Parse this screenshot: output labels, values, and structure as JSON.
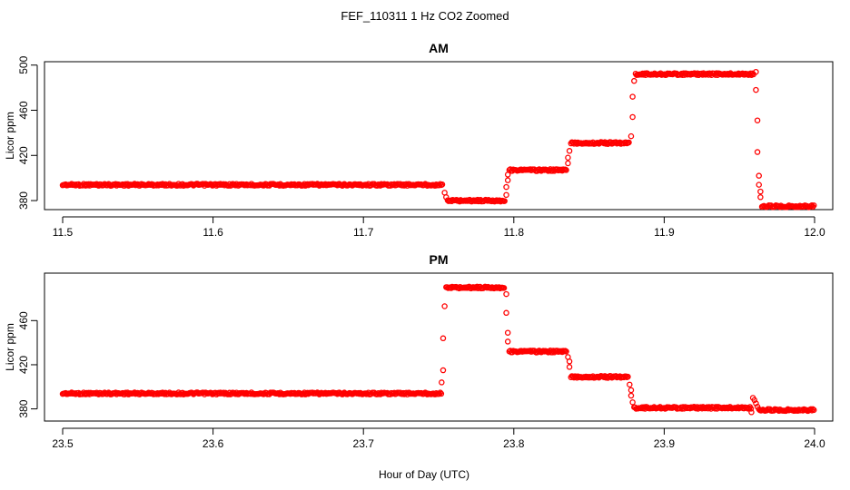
{
  "title": "FEF_110311  1 Hz CO2 Zoomed",
  "xlabel": "Hour of Day (UTC)",
  "chart_data": [
    {
      "type": "scatter",
      "title": "AM",
      "xlabel": "",
      "ylabel": "Licor ppm",
      "xlim": [
        11.5,
        12.0
      ],
      "ylim": [
        372,
        503
      ],
      "xticks": [
        "11.5",
        "11.6",
        "11.7",
        "11.8",
        "11.9",
        "12.0"
      ],
      "yticks": [
        "380",
        "420",
        "460",
        "500"
      ],
      "marker_color": "#ff0000",
      "marker": "open-circle",
      "segments": [
        {
          "x": [
            11.5,
            11.753
          ],
          "y": 394
        },
        {
          "x": [
            11.756,
            11.794
          ],
          "y": 380
        },
        {
          "x": [
            11.797,
            11.835
          ],
          "y": 407
        },
        {
          "x": [
            11.838,
            11.877
          ],
          "y": 431
        },
        {
          "x": [
            11.881,
            11.96
          ],
          "y": 492
        },
        {
          "x": [
            11.965,
            12.0
          ],
          "y": 375
        }
      ],
      "transition_points": [
        {
          "x": 11.754,
          "y": 387
        },
        {
          "x": 11.755,
          "y": 383
        },
        {
          "x": 11.795,
          "y": 385
        },
        {
          "x": 11.795,
          "y": 392
        },
        {
          "x": 11.796,
          "y": 398
        },
        {
          "x": 11.796,
          "y": 403
        },
        {
          "x": 11.836,
          "y": 413
        },
        {
          "x": 11.836,
          "y": 418
        },
        {
          "x": 11.837,
          "y": 424
        },
        {
          "x": 11.878,
          "y": 437
        },
        {
          "x": 11.879,
          "y": 454
        },
        {
          "x": 11.879,
          "y": 472
        },
        {
          "x": 11.88,
          "y": 486
        },
        {
          "x": 11.961,
          "y": 494
        },
        {
          "x": 11.961,
          "y": 478
        },
        {
          "x": 11.962,
          "y": 451
        },
        {
          "x": 11.962,
          "y": 423
        },
        {
          "x": 11.963,
          "y": 402
        },
        {
          "x": 11.963,
          "y": 394
        },
        {
          "x": 11.964,
          "y": 388
        },
        {
          "x": 11.964,
          "y": 383
        }
      ]
    },
    {
      "type": "scatter",
      "title": "PM",
      "xlabel": "Hour of Day (UTC)",
      "ylabel": "Licor ppm",
      "xlim": [
        23.5,
        24.0
      ],
      "ylim": [
        369,
        503
      ],
      "xticks": [
        "23.5",
        "23.6",
        "23.7",
        "23.8",
        "23.9",
        "24.0"
      ],
      "yticks": [
        "380",
        "420",
        "460"
      ],
      "marker_color": "#ff0000",
      "marker": "open-circle",
      "segments": [
        {
          "x": [
            23.5,
            23.752
          ],
          "y": 394
        },
        {
          "x": [
            23.755,
            23.794
          ],
          "y": 490
        },
        {
          "x": [
            23.797,
            23.835
          ],
          "y": 432
        },
        {
          "x": [
            23.838,
            23.876
          ],
          "y": 409
        },
        {
          "x": [
            23.88,
            23.958
          ],
          "y": 381
        },
        {
          "x": [
            23.963,
            24.0
          ],
          "y": 379
        }
      ],
      "transition_points": [
        {
          "x": 23.752,
          "y": 404
        },
        {
          "x": 23.753,
          "y": 415
        },
        {
          "x": 23.753,
          "y": 444
        },
        {
          "x": 23.754,
          "y": 473
        },
        {
          "x": 23.795,
          "y": 484
        },
        {
          "x": 23.795,
          "y": 467
        },
        {
          "x": 23.796,
          "y": 449
        },
        {
          "x": 23.796,
          "y": 441
        },
        {
          "x": 23.836,
          "y": 427
        },
        {
          "x": 23.837,
          "y": 423
        },
        {
          "x": 23.837,
          "y": 418
        },
        {
          "x": 23.877,
          "y": 402
        },
        {
          "x": 23.878,
          "y": 397
        },
        {
          "x": 23.878,
          "y": 392
        },
        {
          "x": 23.879,
          "y": 386
        },
        {
          "x": 23.958,
          "y": 377
        },
        {
          "x": 23.959,
          "y": 390
        },
        {
          "x": 23.96,
          "y": 388
        },
        {
          "x": 23.961,
          "y": 385
        },
        {
          "x": 23.962,
          "y": 382
        }
      ]
    }
  ]
}
